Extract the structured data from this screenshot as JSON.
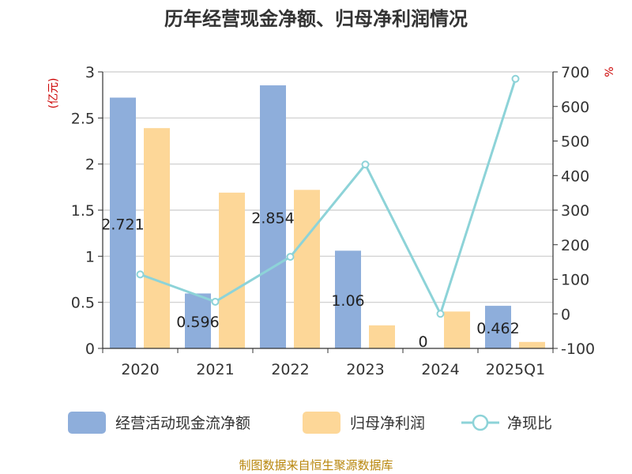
{
  "title": "历年经营现金净额、归母净利润情况",
  "source": "制图数据来自恒生聚源数据库",
  "chart_data": {
    "type": "bar+line",
    "categories": [
      "2020",
      "2021",
      "2022",
      "2023",
      "2024",
      "2025Q1"
    ],
    "series": [
      {
        "name": "经营活动现金流净额",
        "type": "bar",
        "axis": "left",
        "color": "#8eaedb",
        "values": [
          2.721,
          0.596,
          2.854,
          1.06,
          0,
          0.462
        ],
        "labels": [
          "2.721",
          "0.596",
          "2.854",
          "1.06",
          "0",
          "0.462"
        ]
      },
      {
        "name": "归母净利润",
        "type": "bar",
        "axis": "left",
        "color": "#fdd798",
        "values": [
          2.39,
          1.69,
          1.72,
          0.25,
          0.4,
          0.07
        ]
      },
      {
        "name": "净现比",
        "type": "line",
        "axis": "right",
        "color": "#8dd3d8",
        "values": [
          114,
          35,
          165,
          432,
          0,
          680
        ]
      }
    ],
    "y_left": {
      "unit": "(亿元)",
      "min": 0,
      "max": 3,
      "ticks": [
        "0",
        "0.5",
        "1",
        "1.5",
        "2",
        "2.5",
        "3"
      ]
    },
    "y_right": {
      "unit": "%",
      "min": -100,
      "max": 700,
      "ticks": [
        "-100",
        "0",
        "100",
        "200",
        "300",
        "400",
        "500",
        "600",
        "700"
      ]
    },
    "grid": true,
    "legend_position": "bottom"
  }
}
